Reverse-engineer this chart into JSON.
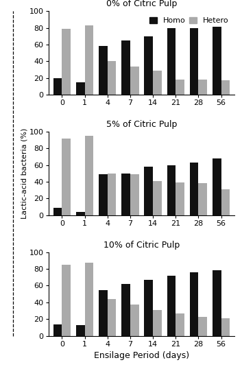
{
  "panels": [
    {
      "title": "0% of Citric Pulp",
      "homo": [
        20,
        15,
        58,
        65,
        70,
        80,
        80,
        81
      ],
      "hetero": [
        79,
        83,
        40,
        34,
        29,
        18,
        18,
        17
      ]
    },
    {
      "title": "5% of Citric Pulp",
      "homo": [
        9,
        4,
        49,
        50,
        58,
        60,
        63,
        68
      ],
      "hetero": [
        92,
        95,
        50,
        49,
        41,
        39,
        38,
        31
      ]
    },
    {
      "title": "10% of Citric Pulp",
      "homo": [
        14,
        13,
        55,
        62,
        67,
        72,
        76,
        78
      ],
      "hetero": [
        85,
        87,
        44,
        37,
        31,
        27,
        23,
        21
      ]
    }
  ],
  "x_labels": [
    "0",
    "1",
    "4",
    "7",
    "14",
    "21",
    "28",
    "56"
  ],
  "xlabel": "Ensilage Period (days)",
  "ylabel": "Lactic-acid bacteria (%)",
  "ylim": [
    0,
    100
  ],
  "yticks": [
    0,
    20,
    40,
    60,
    80,
    100
  ],
  "homo_color": "#111111",
  "hetero_color": "#aaaaaa",
  "legend_labels": [
    "Homo",
    "Hetero"
  ],
  "bar_width": 0.38,
  "figsize": [
    3.53,
    5.38
  ],
  "dpi": 100
}
